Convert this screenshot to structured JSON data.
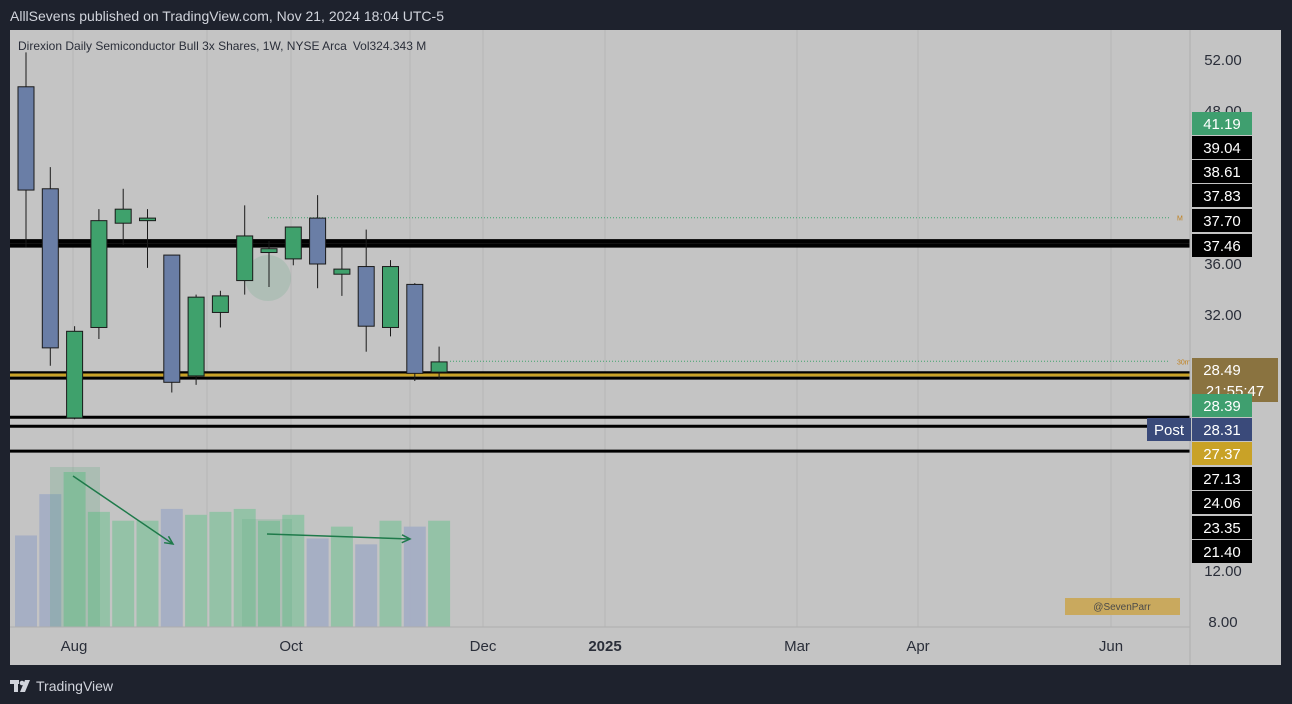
{
  "header": {
    "publish_line": "AlllSevens published on TradingView.com, Nov 21, 2024 18:04 UTC-5"
  },
  "footer": {
    "brand": "TradingView"
  },
  "colors": {
    "background": "#c4c4c4",
    "bull": "#3fa16c",
    "bear": "#6a7ea6",
    "level": "#000000",
    "gold": "#c9a227"
  },
  "chart_data": {
    "type": "candlestick",
    "title": "Direxion Daily Semiconductor Bull 3x Shares, 1W, NYSE Arca",
    "volume_label": "Vol",
    "volume_value": "324.343 M",
    "x_tick_labels": [
      "Aug",
      "Oct",
      "Dec",
      "2025",
      "Mar",
      "Apr",
      "Jun"
    ],
    "y_tick_labels": [
      "52.00",
      "48.00",
      "36.00",
      "32.00",
      "12.00",
      "8.00"
    ],
    "y_ticks": [
      52,
      48,
      36,
      32,
      12,
      8
    ],
    "price_scale": {
      "from": 8,
      "to": 52,
      "ratio": 2.2,
      "note": "broken axis between 12.00 and 32.00"
    },
    "candles": [
      {
        "o": 49.9,
        "h": 52.6,
        "l": 37.3,
        "c": 41.8
      },
      {
        "o": 41.9,
        "h": 43.6,
        "l": 28.1,
        "c": 29.5
      },
      {
        "o": 24.0,
        "h": 31.2,
        "l": 23.9,
        "c": 30.8
      },
      {
        "o": 31.1,
        "h": 40.3,
        "l": 30.2,
        "c": 39.4
      },
      {
        "o": 39.2,
        "h": 41.9,
        "l": 37.5,
        "c": 40.3
      },
      {
        "o": 39.4,
        "h": 40.3,
        "l": 35.7,
        "c": 39.6
      },
      {
        "o": 36.7,
        "h": 36.6,
        "l": 26.0,
        "c": 26.8
      },
      {
        "o": 27.3,
        "h": 33.6,
        "l": 26.6,
        "c": 33.4
      },
      {
        "o": 32.2,
        "h": 33.9,
        "l": 31.1,
        "c": 33.5
      },
      {
        "o": 34.7,
        "h": 40.6,
        "l": 33.6,
        "c": 38.2
      },
      {
        "o": 36.9,
        "h": 37.8,
        "l": 34.2,
        "c": 37.2
      },
      {
        "o": 36.4,
        "h": 38.7,
        "l": 35.9,
        "c": 38.9
      },
      {
        "o": 39.6,
        "h": 41.4,
        "l": 34.1,
        "c": 36.0
      },
      {
        "o": 35.2,
        "h": 37.4,
        "l": 33.5,
        "c": 35.6
      },
      {
        "o": 35.8,
        "h": 38.7,
        "l": 29.2,
        "c": 31.2
      },
      {
        "o": 31.1,
        "h": 36.3,
        "l": 30.4,
        "c": 35.8
      },
      {
        "o": 34.4,
        "h": 34.5,
        "l": 26.9,
        "c": 27.5
      },
      {
        "o": 27.6,
        "h": 29.6,
        "l": 27.0,
        "c": 28.4
      }
    ],
    "volume": [
      62,
      90,
      105,
      78,
      72,
      72,
      80,
      76,
      78,
      80,
      72,
      76,
      60,
      68,
      56,
      72,
      68,
      72
    ],
    "level_lines": [
      {
        "price": 37.83,
        "style": "solid"
      },
      {
        "price": 37.7,
        "style": "solid"
      },
      {
        "price": 37.46,
        "style": "solid"
      },
      {
        "price": 37.4,
        "style": "solid"
      },
      {
        "price": 27.55,
        "style": "solid"
      },
      {
        "price": 27.37,
        "style": "gold"
      },
      {
        "price": 27.13,
        "style": "solid"
      },
      {
        "price": 24.06,
        "style": "solid"
      },
      {
        "price": 23.35,
        "style": "solid"
      },
      {
        "price": 21.4,
        "style": "solid"
      }
    ],
    "dotted_lines": [
      {
        "price": 39.63,
        "label": "M"
      },
      {
        "price": 28.45,
        "label": "30m"
      }
    ],
    "price_labels": [
      {
        "value": "41.19",
        "kind": "green"
      },
      {
        "value": "39.04",
        "kind": "black"
      },
      {
        "value": "38.61",
        "kind": "black"
      },
      {
        "value": "37.83",
        "kind": "black"
      },
      {
        "value": "37.70",
        "kind": "black"
      },
      {
        "value": "37.46",
        "kind": "black"
      },
      {
        "value": "28.49",
        "sub": "21:55:47",
        "kind": "olive"
      },
      {
        "value": "28.39",
        "kind": "green"
      },
      {
        "value": "28.31",
        "tag": "Post",
        "kind": "navy"
      },
      {
        "value": "27.37",
        "kind": "gold"
      },
      {
        "value": "27.13",
        "kind": "black"
      },
      {
        "value": "24.06",
        "kind": "black"
      },
      {
        "value": "23.35",
        "kind": "black"
      },
      {
        "value": "21.40",
        "kind": "black"
      }
    ],
    "watermark": "@SevenParr"
  }
}
